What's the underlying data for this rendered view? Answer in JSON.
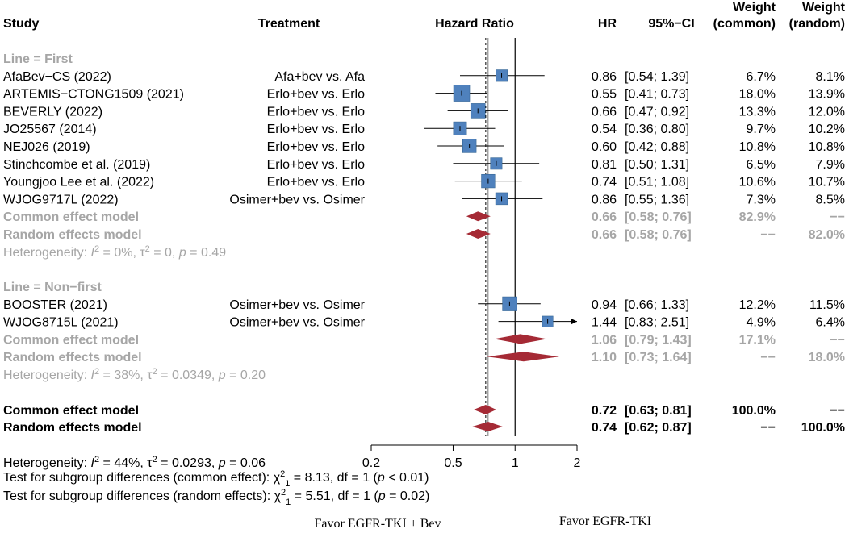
{
  "chart_data": {
    "type": "forest",
    "title": "Hazard Ratio",
    "xscale": "log",
    "xlim": [
      0.2,
      2
    ],
    "xticks": [
      0.2,
      0.5,
      1,
      2
    ],
    "xtick_labels": [
      "0.2",
      "0.5",
      "1",
      "2"
    ],
    "null_line": 1,
    "pooled_line": 0.72,
    "headers": {
      "study": "Study",
      "treatment": "Treatment",
      "hazard_ratio": "Hazard Ratio",
      "hr": "HR",
      "ci": "95%−CI",
      "weight": "Weight",
      "common": "(common)",
      "random": "(random)"
    },
    "subgroups": [
      {
        "label": "Line = First",
        "studies": [
          {
            "study": "AfaBev−CS (2022)",
            "treatment": "Afa+bev vs. Afa",
            "hr": 0.86,
            "lower": 0.54,
            "upper": 1.39,
            "hr_text": "0.86",
            "ci_text": "[0.54; 1.39]",
            "w_common": "6.7%",
            "w_random": "8.1%"
          },
          {
            "study": "ARTEMIS−CTONG1509 (2021)",
            "treatment": "Erlo+bev vs. Erlo",
            "hr": 0.55,
            "lower": 0.41,
            "upper": 0.73,
            "hr_text": "0.55",
            "ci_text": "[0.41; 0.73]",
            "w_common": "18.0%",
            "w_random": "13.9%"
          },
          {
            "study": "BEVERLY (2022)",
            "treatment": "Erlo+bev vs. Erlo",
            "hr": 0.66,
            "lower": 0.47,
            "upper": 0.92,
            "hr_text": "0.66",
            "ci_text": "[0.47; 0.92]",
            "w_common": "13.3%",
            "w_random": "12.0%"
          },
          {
            "study": "JO25567 (2014)",
            "treatment": "Erlo+bev vs. Erlo",
            "hr": 0.54,
            "lower": 0.36,
            "upper": 0.8,
            "hr_text": "0.54",
            "ci_text": "[0.36; 0.80]",
            "w_common": "9.7%",
            "w_random": "10.2%"
          },
          {
            "study": "NEJ026 (2019)",
            "treatment": "Erlo+bev vs. Erlo",
            "hr": 0.6,
            "lower": 0.42,
            "upper": 0.88,
            "hr_text": "0.60",
            "ci_text": "[0.42; 0.88]",
            "w_common": "10.8%",
            "w_random": "10.8%"
          },
          {
            "study": "Stinchcombe et al. (2019)",
            "treatment": "Erlo+bev vs. Erlo",
            "hr": 0.81,
            "lower": 0.5,
            "upper": 1.31,
            "hr_text": "0.81",
            "ci_text": "[0.50; 1.31]",
            "w_common": "6.5%",
            "w_random": "7.9%"
          },
          {
            "study": "Youngjoo Lee et al. (2022)",
            "treatment": "Erlo+bev vs. Erlo",
            "hr": 0.74,
            "lower": 0.51,
            "upper": 1.08,
            "hr_text": "0.74",
            "ci_text": "[0.51; 1.08]",
            "w_common": "10.6%",
            "w_random": "10.7%"
          },
          {
            "study": "WJOG9717L (2022)",
            "treatment": "Osimer+bev vs. Osimer",
            "hr": 0.86,
            "lower": 0.55,
            "upper": 1.36,
            "hr_text": "0.86",
            "ci_text": "[0.55; 1.36]",
            "w_common": "7.3%",
            "w_random": "8.5%"
          }
        ],
        "common": {
          "label": "Common effect model",
          "hr": 0.66,
          "lower": 0.58,
          "upper": 0.76,
          "hr_text": "0.66",
          "ci_text": "[0.58; 0.76]",
          "w_common": "82.9%",
          "w_random": "−−"
        },
        "random": {
          "label": "Random effects model",
          "hr": 0.66,
          "lower": 0.58,
          "upper": 0.76,
          "hr_text": "0.66",
          "ci_text": "[0.58; 0.76]",
          "w_common": "−−",
          "w_random": "82.0%"
        },
        "heterogeneity": {
          "prefix": "Heterogeneity: ",
          "i2_sym": "I",
          "i2": " = 0%, ",
          "tau_sym": "τ",
          "tau": " = 0, ",
          "p_sym": "p",
          "p": " = 0.49"
        }
      },
      {
        "label": "Line = Non−first",
        "studies": [
          {
            "study": "BOOSTER (2021)",
            "treatment": "Osimer+bev vs. Osimer",
            "hr": 0.94,
            "lower": 0.66,
            "upper": 1.33,
            "hr_text": "0.94",
            "ci_text": "[0.66; 1.33]",
            "w_common": "12.2%",
            "w_random": "11.5%"
          },
          {
            "study": "WJOG8715L (2021)",
            "treatment": "Osimer+bev vs. Osimer",
            "hr": 1.44,
            "lower": 0.83,
            "upper": 2.51,
            "hr_text": "1.44",
            "ci_text": "[0.83; 2.51]",
            "w_common": "4.9%",
            "w_random": "6.4%"
          }
        ],
        "common": {
          "label": "Common effect model",
          "hr": 1.06,
          "lower": 0.79,
          "upper": 1.43,
          "hr_text": "1.06",
          "ci_text": "[0.79; 1.43]",
          "w_common": "17.1%",
          "w_random": "−−"
        },
        "random": {
          "label": "Random effects model",
          "hr": 1.1,
          "lower": 0.73,
          "upper": 1.64,
          "hr_text": "1.10",
          "ci_text": "[0.73; 1.64]",
          "w_common": "−−",
          "w_random": "18.0%"
        },
        "heterogeneity": {
          "prefix": "Heterogeneity: ",
          "i2_sym": "I",
          "i2": " = 38%, ",
          "tau_sym": "τ",
          "tau": " = 0.0349, ",
          "p_sym": "p",
          "p": " = 0.20"
        }
      }
    ],
    "overall": {
      "common": {
        "label": "Common effect model",
        "hr": 0.72,
        "lower": 0.63,
        "upper": 0.81,
        "hr_text": "0.72",
        "ci_text": "[0.63; 0.81]",
        "w_common": "100.0%",
        "w_random": "−−"
      },
      "random": {
        "label": "Random effects model",
        "hr": 0.74,
        "lower": 0.62,
        "upper": 0.87,
        "hr_text": "0.74",
        "ci_text": "[0.62; 0.87]",
        "w_common": "−−",
        "w_random": "100.0%"
      },
      "heterogeneity": {
        "prefix": "Heterogeneity: ",
        "i2_sym": "I",
        "i2": " = 44%, ",
        "tau_sym": "τ",
        "tau": " = 0.0293, ",
        "p_sym": "p",
        "p": " = 0.06"
      },
      "test_common": {
        "prefix": "Test for subgroup differences (common effect): ",
        "chi": "χ",
        "mid": " = 8.13, df = 1 (",
        "p_sym": "p",
        "end": " < 0.01)"
      },
      "test_random": {
        "prefix": "Test for subgroup differences (random effects): ",
        "chi": "χ",
        "mid": " = 5.51, df = 1 (",
        "p_sym": "p",
        "end": " = 0.02)"
      }
    },
    "favor_left": "Favor EGFR-TKI + Bev",
    "favor_right": "Favor EGFR-TKI",
    "colors": {
      "square": "#4f81bd",
      "square_stroke": "#2e5f8c",
      "diamond": "#a52a35",
      "grey": "#a6a6a6",
      "text": "#000000"
    }
  }
}
